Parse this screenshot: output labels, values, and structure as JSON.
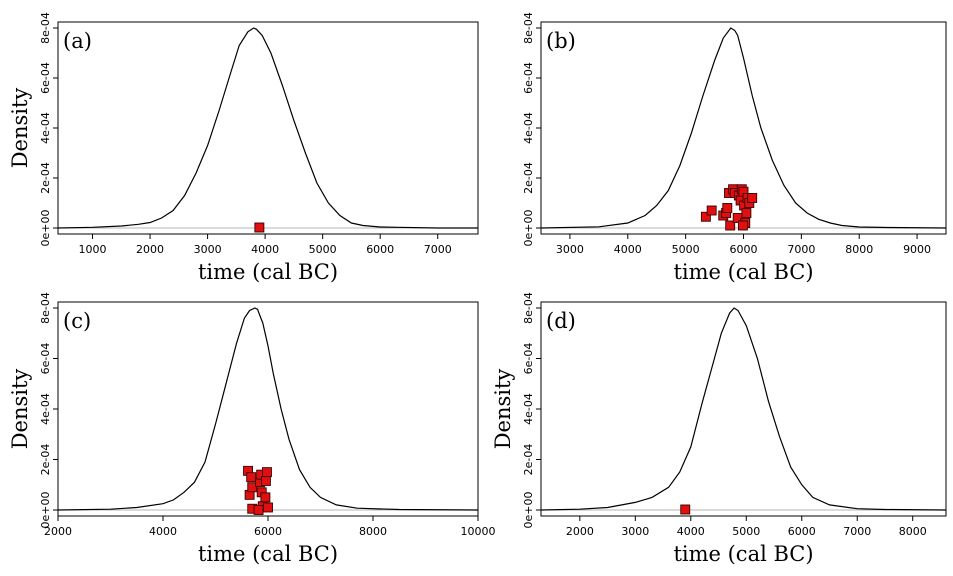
{
  "chart_data": [
    {
      "type": "line",
      "panel_label": "(a)",
      "xlabel": "time (cal BC)",
      "ylabel": "Density",
      "xlim": [
        400,
        7700
      ],
      "ylim": [
        0,
        0.0008
      ],
      "x_ticks": [
        1000,
        2000,
        3000,
        4000,
        5000,
        6000,
        7000
      ],
      "y_ticks": [
        "0e+00",
        "2e-04",
        "4e-04",
        "6e-04",
        "8e-04"
      ],
      "y_tick_values": [
        0,
        0.0002,
        0.0004,
        0.0006,
        0.0008
      ],
      "grid": false,
      "series": [
        {
          "x": [
            400,
            1000,
            1500,
            1800,
            2000,
            2200,
            2400,
            2600,
            2800,
            3000,
            3200,
            3400,
            3550,
            3700,
            3800,
            3850,
            3950,
            4100,
            4300,
            4500,
            4700,
            4900,
            5100,
            5300,
            5500,
            5700,
            6000,
            6300,
            7000,
            7700
          ],
          "y": [
            0,
            3e-06,
            8e-06,
            1.5e-05,
            2.2e-05,
            4e-05,
            7e-05,
            0.00013,
            0.00022,
            0.00033,
            0.00047,
            0.00062,
            0.00073,
            0.000785,
            0.0008,
            0.000795,
            0.00077,
            0.0007,
            0.00057,
            0.00043,
            0.0003,
            0.00018,
            0.0001,
            5e-05,
            2e-05,
            1e-05,
            4e-06,
            3e-06,
            0,
            0
          ]
        }
      ],
      "markers": [
        {
          "x": 3900,
          "y": 2e-06
        }
      ]
    },
    {
      "type": "line",
      "panel_label": "(b)",
      "xlabel": "time (cal BC)",
      "ylabel": "",
      "xlim": [
        2500,
        9500
      ],
      "ylim": [
        0,
        0.0008
      ],
      "x_ticks": [
        3000,
        4000,
        5000,
        6000,
        7000,
        8000,
        9000
      ],
      "y_ticks": [
        "0e+00",
        "2e-04",
        "4e-04",
        "6e-04",
        "8e-04"
      ],
      "y_tick_values": [
        0,
        0.0002,
        0.0004,
        0.0006,
        0.0008
      ],
      "grid": false,
      "series": [
        {
          "x": [
            2500,
            3500,
            4000,
            4300,
            4500,
            4700,
            4900,
            5100,
            5300,
            5500,
            5650,
            5780,
            5850,
            5900,
            6000,
            6150,
            6300,
            6500,
            6700,
            6900,
            7100,
            7300,
            7500,
            7700,
            8000,
            8500,
            9500
          ],
          "y": [
            0,
            5e-06,
            2e-05,
            5e-05,
            9e-05,
            0.00015,
            0.00025,
            0.00038,
            0.00053,
            0.00067,
            0.00076,
            0.0008,
            0.00079,
            0.00077,
            0.00068,
            0.00053,
            0.0004,
            0.00027,
            0.00017,
            0.0001,
            6e-05,
            3.5e-05,
            2e-05,
            1e-05,
            4e-06,
            2e-06,
            0
          ]
        }
      ],
      "markers": [
        {
          "x": 5350,
          "y": 4.5e-05
        },
        {
          "x": 5450,
          "y": 7e-05
        },
        {
          "x": 5650,
          "y": 5e-05
        },
        {
          "x": 5700,
          "y": 6e-05
        },
        {
          "x": 5720,
          "y": 8e-05
        },
        {
          "x": 5750,
          "y": 0.00014
        },
        {
          "x": 5770,
          "y": 1e-05
        },
        {
          "x": 5820,
          "y": 0.000155
        },
        {
          "x": 5850,
          "y": 0.00014
        },
        {
          "x": 5900,
          "y": 4e-05
        },
        {
          "x": 5920,
          "y": 0.00013
        },
        {
          "x": 5950,
          "y": 0.00011
        },
        {
          "x": 5970,
          "y": 0.000155
        },
        {
          "x": 6000,
          "y": 0.000145
        },
        {
          "x": 6010,
          "y": 9e-05
        },
        {
          "x": 6030,
          "y": 2e-05
        },
        {
          "x": 6050,
          "y": 6e-05
        },
        {
          "x": 6070,
          "y": 0.00012
        },
        {
          "x": 6100,
          "y": 0.0001
        },
        {
          "x": 6150,
          "y": 0.00012
        },
        {
          "x": 5990,
          "y": 1e-05
        }
      ]
    },
    {
      "type": "line",
      "panel_label": "(c)",
      "xlabel": "time (cal BC)",
      "ylabel": "Density",
      "xlim": [
        2000,
        10000
      ],
      "ylim": [
        0,
        0.0008
      ],
      "x_ticks": [
        2000,
        4000,
        6000,
        8000,
        10000
      ],
      "y_ticks": [
        "0e+00",
        "2e-04",
        "4e-04",
        "6e-04",
        "8e-04"
      ],
      "y_tick_values": [
        0,
        0.0002,
        0.0004,
        0.0006,
        0.0008
      ],
      "grid": false,
      "series": [
        {
          "x": [
            2000,
            3000,
            3500,
            4000,
            4200,
            4400,
            4600,
            4800,
            5000,
            5200,
            5400,
            5550,
            5650,
            5750,
            5800,
            5900,
            6000,
            6100,
            6250,
            6400,
            6600,
            6800,
            7000,
            7300,
            7700,
            8500,
            10000
          ],
          "y": [
            0,
            3e-06,
            1e-05,
            2.5e-05,
            4e-05,
            7e-05,
            0.00011,
            0.00019,
            0.00034,
            0.0005,
            0.00066,
            0.00076,
            0.00079,
            0.0008,
            0.000795,
            0.00074,
            0.00065,
            0.00054,
            0.0004,
            0.00028,
            0.00016,
            9e-05,
            5e-05,
            2e-05,
            7e-06,
            2e-06,
            0
          ]
        }
      ],
      "markers": [
        {
          "x": 5620,
          "y": 0.000155
        },
        {
          "x": 5680,
          "y": 0.00013
        },
        {
          "x": 5650,
          "y": 6e-05
        },
        {
          "x": 5700,
          "y": 9e-05
        },
        {
          "x": 5700,
          "y": 5e-06
        },
        {
          "x": 5850,
          "y": 0.00011
        },
        {
          "x": 5870,
          "y": 0.00014
        },
        {
          "x": 5880,
          "y": 7e-05
        },
        {
          "x": 5900,
          "y": 1.5e-05
        },
        {
          "x": 5950,
          "y": 5e-05
        },
        {
          "x": 5960,
          "y": 0.000115
        },
        {
          "x": 5980,
          "y": 0.00015
        },
        {
          "x": 6000,
          "y": 1e-05
        },
        {
          "x": 5820,
          "y": 0.0
        }
      ]
    },
    {
      "type": "line",
      "panel_label": "(d)",
      "xlabel": "time (cal BC)",
      "ylabel": "Density",
      "xlim": [
        1300,
        8600
      ],
      "ylim": [
        0,
        0.0008
      ],
      "x_ticks": [
        2000,
        3000,
        4000,
        5000,
        6000,
        7000,
        8000
      ],
      "y_ticks": [
        "0e+00",
        "2e-04",
        "4e-04",
        "6e-04",
        "8e-04"
      ],
      "y_tick_values": [
        0,
        0.0002,
        0.0004,
        0.0006,
        0.0008
      ],
      "grid": false,
      "series": [
        {
          "x": [
            1300,
            2000,
            2500,
            3000,
            3300,
            3600,
            3800,
            4000,
            4200,
            4400,
            4550,
            4700,
            4780,
            4850,
            5000,
            5200,
            5400,
            5600,
            5800,
            6000,
            6200,
            6500,
            7000,
            7500,
            8600
          ],
          "y": [
            0,
            3e-06,
            1e-05,
            3e-05,
            5e-05,
            9e-05,
            0.00015,
            0.00025,
            0.00042,
            0.00058,
            0.0007,
            0.00078,
            0.0008,
            0.00079,
            0.00073,
            0.0006,
            0.00043,
            0.00029,
            0.00017,
            0.0001,
            5e-05,
            2e-05,
            5e-06,
            2e-06,
            0
          ]
        }
      ],
      "markers": [
        {
          "x": 3900,
          "y": 2e-06
        }
      ]
    }
  ]
}
